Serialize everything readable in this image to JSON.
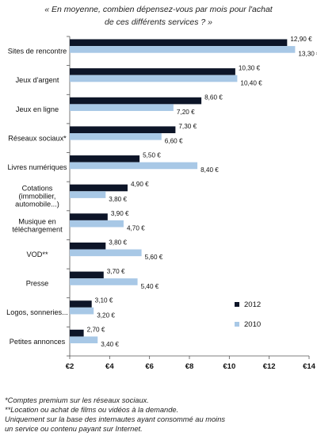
{
  "chart_data": {
    "type": "bar",
    "orientation": "horizontal",
    "title_line1": "« En moyenne, combien dépensez-vous par mois pour l'achat",
    "title_line2": "de ces différents services ? »",
    "categories": [
      [
        "Sites de rencontre"
      ],
      [
        "Jeux d'argent"
      ],
      [
        "Jeux en ligne"
      ],
      [
        "Réseaux sociaux*"
      ],
      [
        "Livres numériques"
      ],
      [
        "Cotations",
        "(immobilier,",
        "automobile...)"
      ],
      [
        "Musique en",
        "téléchargement"
      ],
      [
        "VOD**"
      ],
      [
        "Presse"
      ],
      [
        "Logos, sonneries..."
      ],
      [
        "Petites annonces"
      ]
    ],
    "series": [
      {
        "name": "2012",
        "color": "#0d1528",
        "values": [
          12.9,
          10.3,
          8.6,
          7.3,
          5.5,
          4.9,
          3.9,
          3.8,
          3.7,
          3.1,
          2.7
        ],
        "labels": [
          "12,90 €",
          "10,30 €",
          "8,60 €",
          "7,30 €",
          "5,50 €",
          "4,90 €",
          "3,90 €",
          "3,80 €",
          "3,70 €",
          "3,10 €",
          "2,70 €"
        ]
      },
      {
        "name": "2010",
        "color": "#a8c8e6",
        "values": [
          13.3,
          10.4,
          7.2,
          6.6,
          8.4,
          3.8,
          4.7,
          5.6,
          5.4,
          3.2,
          3.4
        ],
        "labels": [
          "13,30 €",
          "10,40 €",
          "7,20 €",
          "6,60 €",
          "8,40 €",
          "3,80 €",
          "4,70 €",
          "5,60 €",
          "5,40 €",
          "3,20 €",
          "3,40 €"
        ]
      }
    ],
    "xlim": [
      2,
      14
    ],
    "xticks": [
      2,
      4,
      6,
      8,
      10,
      12,
      14
    ],
    "xtick_labels": [
      "€2",
      "€4",
      "€6",
      "€8",
      "€10",
      "€12",
      "€14"
    ],
    "legend_position": "lower-right",
    "grid": false
  },
  "notes": [
    "*Comptes premium sur les réseaux sociaux.",
    "**Location ou achat de films ou vidéos à la demande.",
    "Uniquement sur la base des internautes ayant consommé au moins",
    "un service ou contenu payant sur Internet."
  ]
}
